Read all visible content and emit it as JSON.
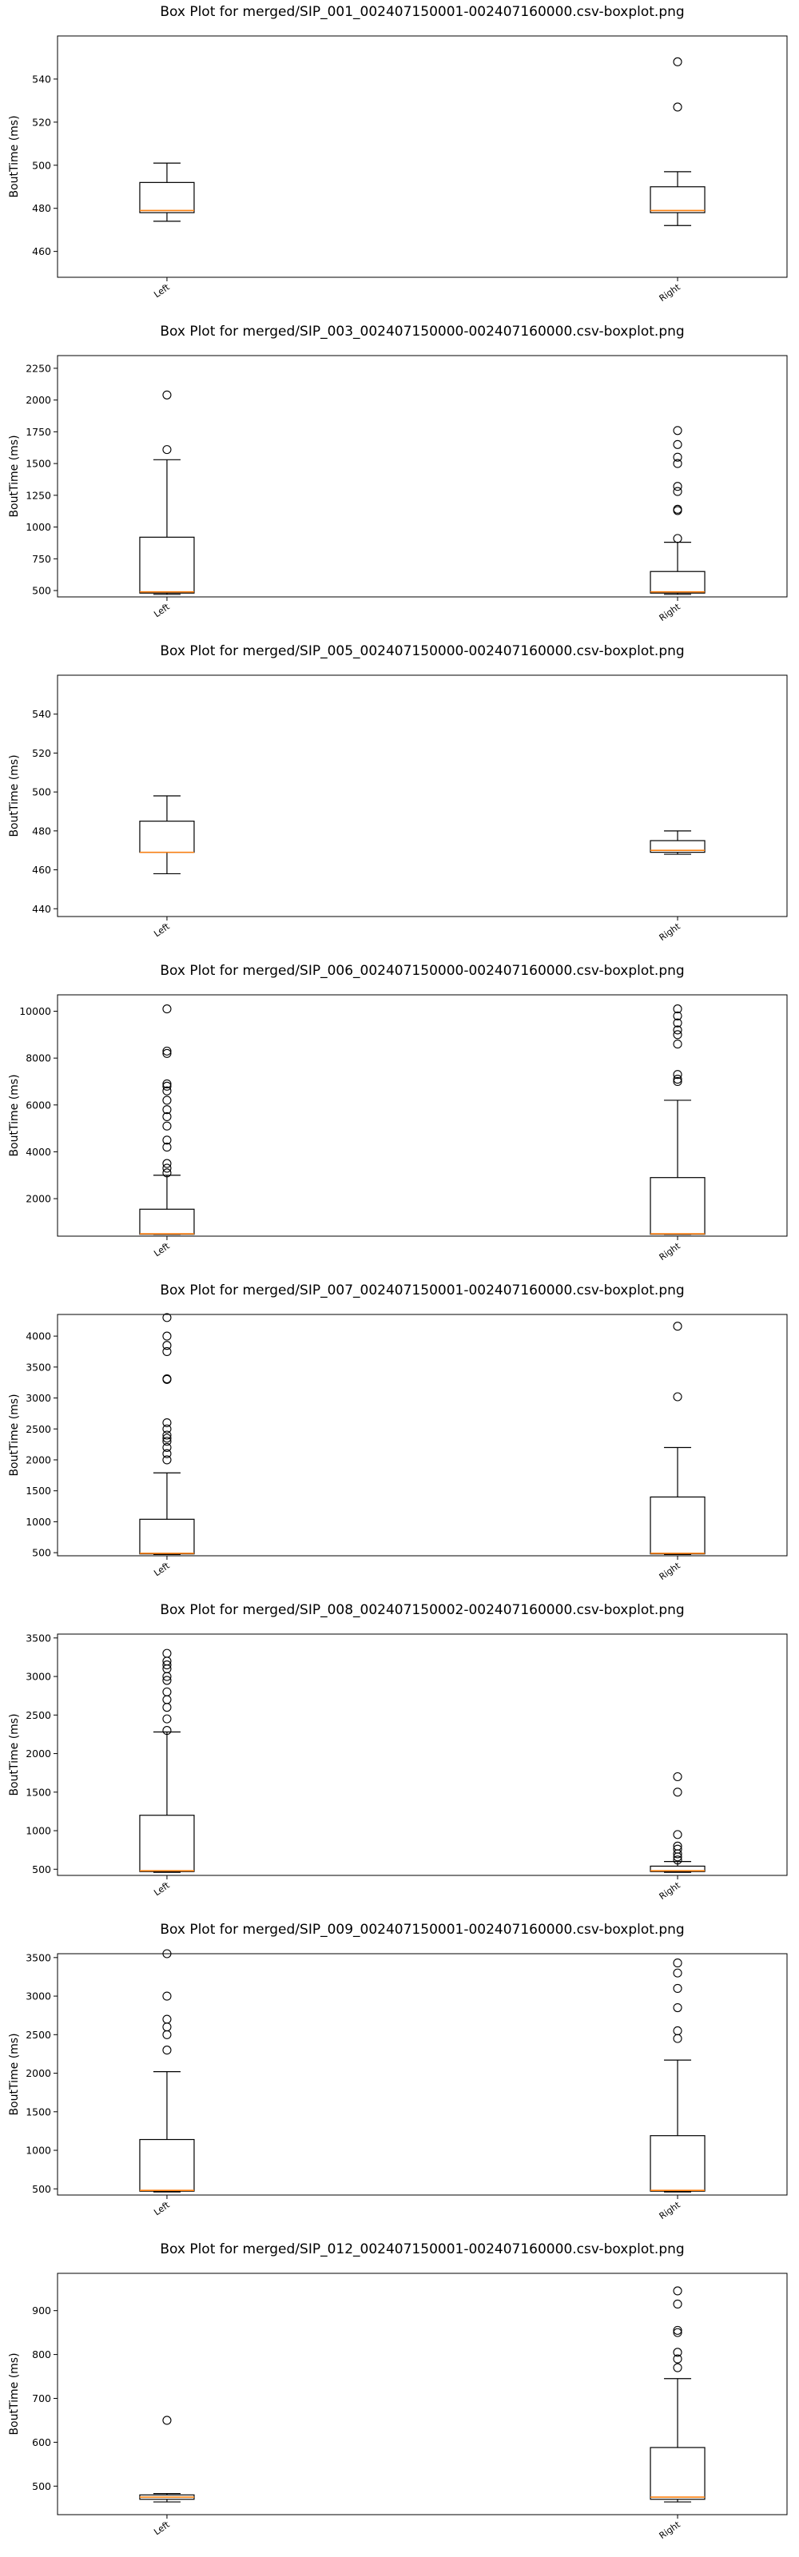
{
  "chart_data": [
    {
      "type": "box",
      "title": "Box Plot for merged/SIP_001_002407150001-002407160000.csv-boxplot.png",
      "ylabel": "BoutTime (ms)",
      "categories": [
        "Left",
        "Right"
      ],
      "ylim": [
        448,
        560
      ],
      "yticks": [
        460,
        480,
        500,
        520,
        540
      ],
      "boxes": [
        {
          "whislo": 474,
          "q1": 478,
          "med": 479,
          "q3": 492,
          "whishi": 501,
          "fliers": []
        },
        {
          "whislo": 472,
          "q1": 478,
          "med": 479,
          "q3": 490,
          "whishi": 497,
          "fliers": [
            527,
            548
          ]
        }
      ]
    },
    {
      "type": "box",
      "title": "Box Plot for merged/SIP_003_002407150000-002407160000.csv-boxplot.png",
      "ylabel": "BoutTime (ms)",
      "categories": [
        "Left",
        "Right"
      ],
      "ylim": [
        450,
        2350
      ],
      "yticks": [
        500,
        750,
        1000,
        1250,
        1500,
        1750,
        2000,
        2250
      ],
      "boxes": [
        {
          "whislo": 470,
          "q1": 480,
          "med": 490,
          "q3": 920,
          "whishi": 1530,
          "fliers": [
            1610,
            2040
          ]
        },
        {
          "whislo": 470,
          "q1": 480,
          "med": 490,
          "q3": 650,
          "whishi": 880,
          "fliers": [
            910,
            1130,
            1140,
            1280,
            1320,
            1500,
            1550,
            1650,
            1760
          ]
        }
      ]
    },
    {
      "type": "box",
      "title": "Box Plot for merged/SIP_005_002407150000-002407160000.csv-boxplot.png",
      "ylabel": "BoutTime (ms)",
      "categories": [
        "Left",
        "Right"
      ],
      "ylim": [
        436,
        560
      ],
      "yticks": [
        440,
        460,
        480,
        500,
        520,
        540
      ],
      "boxes": [
        {
          "whislo": 458,
          "q1": 469,
          "med": 469,
          "q3": 485,
          "whishi": 498,
          "fliers": []
        },
        {
          "whislo": 468,
          "q1": 469,
          "med": 470,
          "q3": 475,
          "whishi": 480,
          "fliers": []
        }
      ]
    },
    {
      "type": "box",
      "title": "Box Plot for merged/SIP_006_002407150000-002407160000.csv-boxplot.png",
      "ylabel": "BoutTime (ms)",
      "categories": [
        "Left",
        "Right"
      ],
      "ylim": [
        400,
        10700
      ],
      "yticks": [
        2000,
        4000,
        6000,
        8000,
        10000
      ],
      "boxes": [
        {
          "whislo": 470,
          "q1": 480,
          "med": 500,
          "q3": 1550,
          "whishi": 3000,
          "fliers": [
            3100,
            3300,
            3500,
            4200,
            4500,
            5100,
            5500,
            5800,
            6200,
            6600,
            6800,
            6900,
            8200,
            8300,
            10100
          ]
        },
        {
          "whislo": 470,
          "q1": 480,
          "med": 500,
          "q3": 2900,
          "whishi": 6200,
          "fliers": [
            7000,
            7100,
            7300,
            8600,
            9000,
            9200,
            9500,
            9800,
            10100
          ]
        }
      ]
    },
    {
      "type": "box",
      "title": "Box Plot for merged/SIP_007_002407150001-002407160000.csv-boxplot.png",
      "ylabel": "BoutTime (ms)",
      "categories": [
        "Left",
        "Right"
      ],
      "ylim": [
        450,
        4350
      ],
      "yticks": [
        500,
        1000,
        1500,
        2000,
        2500,
        3000,
        3500,
        4000
      ],
      "boxes": [
        {
          "whislo": 470,
          "q1": 480,
          "med": 490,
          "q3": 1040,
          "whishi": 1790,
          "fliers": [
            2000,
            2100,
            2200,
            2300,
            2350,
            2400,
            2500,
            2600,
            3300,
            3310,
            3750,
            3850,
            4000,
            4300
          ]
        },
        {
          "whislo": 470,
          "q1": 480,
          "med": 490,
          "q3": 1400,
          "whishi": 2200,
          "fliers": [
            3020,
            4160
          ]
        }
      ]
    },
    {
      "type": "box",
      "title": "Box Plot for merged/SIP_008_002407150002-002407160000.csv-boxplot.png",
      "ylabel": "BoutTime (ms)",
      "categories": [
        "Left",
        "Right"
      ],
      "ylim": [
        420,
        3550
      ],
      "yticks": [
        500,
        1000,
        1500,
        2000,
        2500,
        3000,
        3500
      ],
      "boxes": [
        {
          "whislo": 460,
          "q1": 470,
          "med": 480,
          "q3": 1200,
          "whishi": 2280,
          "fliers": [
            2300,
            2450,
            2600,
            2700,
            2800,
            2950,
            3000,
            3100,
            3150,
            3200,
            3300
          ]
        },
        {
          "whislo": 460,
          "q1": 470,
          "med": 480,
          "q3": 540,
          "whishi": 600,
          "fliers": [
            620,
            660,
            700,
            760,
            800,
            950,
            1500,
            1700
          ]
        }
      ]
    },
    {
      "type": "box",
      "title": "Box Plot for merged/SIP_009_002407150001-002407160000.csv-boxplot.png",
      "ylabel": "BoutTime (ms)",
      "categories": [
        "Left",
        "Right"
      ],
      "ylim": [
        420,
        3550
      ],
      "yticks": [
        500,
        1000,
        1500,
        2000,
        2500,
        3000,
        3500
      ],
      "boxes": [
        {
          "whislo": 460,
          "q1": 470,
          "med": 480,
          "q3": 1140,
          "whishi": 2020,
          "fliers": [
            2300,
            2500,
            2600,
            2700,
            3000,
            3550
          ]
        },
        {
          "whislo": 460,
          "q1": 470,
          "med": 480,
          "q3": 1190,
          "whishi": 2170,
          "fliers": [
            2450,
            2550,
            2850,
            3100,
            3300,
            3430
          ]
        }
      ]
    },
    {
      "type": "box",
      "title": "Box Plot for merged/SIP_012_002407150001-002407160000.csv-boxplot.png",
      "ylabel": "BoutTime (ms)",
      "categories": [
        "Left",
        "Right"
      ],
      "ylim": [
        435,
        985
      ],
      "yticks": [
        500,
        600,
        700,
        800,
        900
      ],
      "boxes": [
        {
          "whislo": 464,
          "q1": 470,
          "med": 475,
          "q3": 480,
          "whishi": 483,
          "fliers": [
            650
          ]
        },
        {
          "whislo": 464,
          "q1": 470,
          "med": 475,
          "q3": 588,
          "whishi": 745,
          "fliers": [
            770,
            790,
            805,
            850,
            855,
            915,
            945
          ]
        }
      ]
    }
  ]
}
